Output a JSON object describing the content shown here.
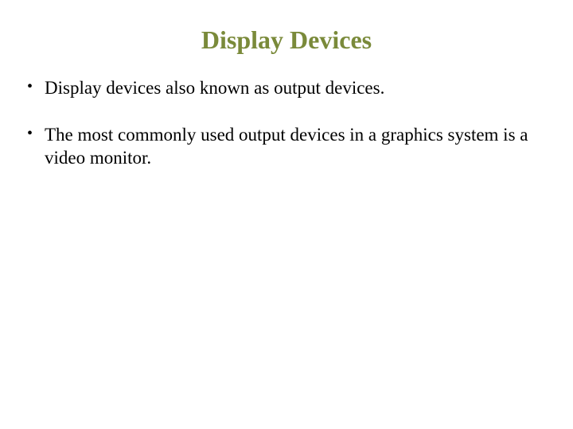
{
  "slide": {
    "title": "Display Devices",
    "title_color": "#7a8a3a",
    "title_fontsize": 32,
    "background_color": "#ffffff",
    "bullets": [
      "Display devices also known as output devices.",
      "The most commonly used output devices in a graphics system is a video monitor."
    ],
    "bullet_fontsize": 23,
    "bullet_color": "#000000",
    "font_family": "Times New Roman"
  }
}
